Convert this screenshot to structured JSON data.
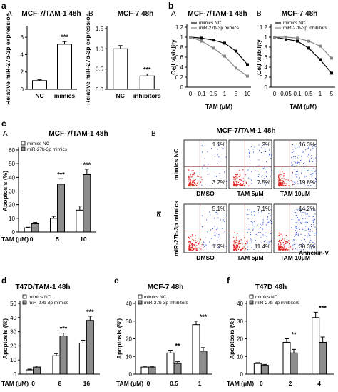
{
  "panel_labels": {
    "a": "a",
    "a_A": "A",
    "a_B": "B",
    "b": "b",
    "b_A": "A",
    "b_B": "B",
    "c": "c",
    "c_A": "A",
    "c_B": "B",
    "d": "d",
    "e": "e",
    "f": "f"
  },
  "colors": {
    "open_bar": "#ffffff",
    "filled_bar": "#8c8c8c",
    "grid": "#cccccc",
    "dot_red": "#e02020",
    "dot_blue": "#2040d0"
  },
  "flow": {
    "title": "MCF-7/TAM-1 48h",
    "row_labels": [
      "mimics NC",
      "miR-27b-3p mimics"
    ],
    "col_labels": [
      "DMSO",
      "TAM 5μM",
      "TAM 10μM"
    ],
    "x_axis_label": "Annexin-V",
    "y_axis_label": "PI",
    "quadrants": [
      [
        {
          "ul": "1.1%",
          "lr": "3.2%"
        },
        {
          "ul": "3%",
          "lr": "7.5%"
        },
        {
          "ul": "16.3%",
          "lr": "19.8%"
        }
      ],
      [
        {
          "ul": "5.1%",
          "lr": "1.2%"
        },
        {
          "ul": "7.1%",
          "lr": "11.4%"
        },
        {
          "ul": "14.2%",
          "lr": "30.3%"
        }
      ]
    ]
  },
  "chart_data": [
    {
      "id": "aA",
      "type": "bar",
      "title": "MCF-7/TAM-1  48h",
      "ylabel": "Relative miR-27b-3p expression",
      "categories": [
        "NC",
        "mimics"
      ],
      "series": [
        {
          "values": [
            1.0,
            5.2
          ],
          "errors": [
            0.1,
            0.3
          ],
          "fills": [
            "open",
            "open"
          ]
        }
      ],
      "ylim": [
        0,
        7
      ],
      "yticks": [
        0,
        2,
        4,
        6
      ],
      "annotations": [
        {
          "category": "mimics",
          "text": "***"
        }
      ]
    },
    {
      "id": "aB",
      "type": "bar",
      "title": "MCF-7  48h",
      "ylabel": "Relative miR-27b-3p expression",
      "categories": [
        "NC",
        "inhibitors"
      ],
      "series": [
        {
          "values": [
            1.0,
            0.33
          ],
          "errors": [
            0.08,
            0.05
          ],
          "fills": [
            "open",
            "open"
          ]
        }
      ],
      "ylim": [
        0,
        1.5
      ],
      "yticks": [
        0.0,
        0.5,
        1.0,
        1.5
      ],
      "annotations": [
        {
          "category": "inhibitors",
          "text": "***"
        }
      ]
    },
    {
      "id": "bA",
      "type": "line",
      "title": "MCF-7/TAM-1 48h",
      "ylabel": "Cell viability",
      "xlabel": "TAM (μM)",
      "x": [
        "0",
        "0.1",
        "0.5",
        "1",
        "5",
        "10"
      ],
      "ylim": [
        0,
        1.2
      ],
      "yticks": [
        0,
        0.2,
        0.4,
        0.6,
        0.8,
        1.0,
        1.2
      ],
      "series": [
        {
          "name": "mimics NC",
          "values": [
            1.0,
            0.98,
            0.94,
            0.88,
            0.72,
            0.45
          ],
          "marker": "black"
        },
        {
          "name": "miR-27b-3p mimics",
          "values": [
            1.0,
            0.92,
            0.78,
            0.62,
            0.38,
            0.22
          ],
          "marker": "gray"
        }
      ]
    },
    {
      "id": "bB",
      "type": "line",
      "title": "MCF-7  48h",
      "ylabel": "Cell viability",
      "xlabel": "TAM (μM)",
      "x": [
        "0",
        "0.05",
        "0.1",
        "0.5",
        "1",
        "5"
      ],
      "ylim": [
        0,
        1.2
      ],
      "yticks": [
        0,
        0.2,
        0.4,
        0.6,
        0.8,
        1.0,
        1.2
      ],
      "series": [
        {
          "name": "mimics NC",
          "values": [
            1.0,
            0.96,
            0.92,
            0.78,
            0.55,
            0.28
          ],
          "marker": "black"
        },
        {
          "name": "miR-27b-3p inhibitors",
          "values": [
            1.0,
            1.0,
            0.98,
            0.92,
            0.82,
            0.58
          ],
          "marker": "gray"
        }
      ]
    },
    {
      "id": "cA",
      "type": "bar",
      "title": "MCF-7/TAM-1 48h",
      "ylabel": "Apoptosis (%)",
      "xlabel": "TAM (μM)",
      "categories": [
        "0",
        "5",
        "10"
      ],
      "ylim": [
        0,
        60
      ],
      "yticks": [
        0,
        10,
        20,
        30,
        40,
        50,
        60
      ],
      "series": [
        {
          "name": "mimics NC",
          "values": [
            3,
            10,
            16
          ],
          "errors": [
            0.5,
            1.5,
            3
          ],
          "fill": "open"
        },
        {
          "name": "miR-27b-3p mimics",
          "values": [
            6,
            35,
            42
          ],
          "errors": [
            1,
            4,
            4
          ],
          "fill": "filled"
        }
      ],
      "annotations": [
        {
          "category": "5",
          "text": "***"
        },
        {
          "category": "10",
          "text": "***"
        }
      ]
    },
    {
      "id": "d",
      "type": "bar",
      "title": "T47D/TAM-1 48h",
      "ylabel": "Apoptosis (%)",
      "xlabel": "TAM (μM)",
      "categories": [
        "0",
        "8",
        "16"
      ],
      "ylim": [
        0,
        50
      ],
      "yticks": [
        0,
        10,
        20,
        30,
        40,
        50
      ],
      "series": [
        {
          "name": "mimics NC",
          "values": [
            3,
            13,
            22
          ],
          "errors": [
            0.5,
            1.5,
            2
          ],
          "fill": "open"
        },
        {
          "name": "miR-27b-3p mimics",
          "values": [
            5,
            27,
            38
          ],
          "errors": [
            0.8,
            2,
            3
          ],
          "fill": "filled"
        }
      ],
      "annotations": [
        {
          "category": "8",
          "text": "***"
        },
        {
          "category": "16",
          "text": "***"
        }
      ]
    },
    {
      "id": "e",
      "type": "bar",
      "title": "MCF-7  48h",
      "ylabel": "Apoptosis (%)",
      "xlabel": "TAM (μM)",
      "categories": [
        "0",
        "0.5",
        "1"
      ],
      "ylim": [
        0,
        40
      ],
      "yticks": [
        0,
        10,
        20,
        30,
        40
      ],
      "series": [
        {
          "name": "mimics NC",
          "values": [
            4,
            12,
            28
          ],
          "errors": [
            0.5,
            1.5,
            2
          ],
          "fill": "open"
        },
        {
          "name": "miR-27b-3p inhibitors",
          "values": [
            4,
            6,
            13
          ],
          "errors": [
            0.5,
            1,
            2
          ],
          "fill": "filled"
        }
      ],
      "annotations": [
        {
          "category": "0.5",
          "text": "**"
        },
        {
          "category": "1",
          "text": "***"
        }
      ]
    },
    {
      "id": "f",
      "type": "bar",
      "title": "T47D  48h",
      "ylabel": "Apoptosis (%)",
      "xlabel": "TAM (μM)",
      "categories": [
        "0",
        "2",
        "4"
      ],
      "ylim": [
        0,
        40
      ],
      "yticks": [
        0,
        10,
        20,
        30,
        40
      ],
      "series": [
        {
          "name": "mimics NC",
          "values": [
            6,
            18,
            32
          ],
          "errors": [
            0.5,
            2,
            3
          ],
          "fill": "open"
        },
        {
          "name": "miR-27b-3p inhibitors",
          "values": [
            5,
            12,
            18
          ],
          "errors": [
            0.5,
            2,
            3
          ],
          "fill": "filled"
        }
      ],
      "annotations": [
        {
          "category": "2",
          "text": "**"
        },
        {
          "category": "4",
          "text": "***"
        }
      ]
    }
  ]
}
